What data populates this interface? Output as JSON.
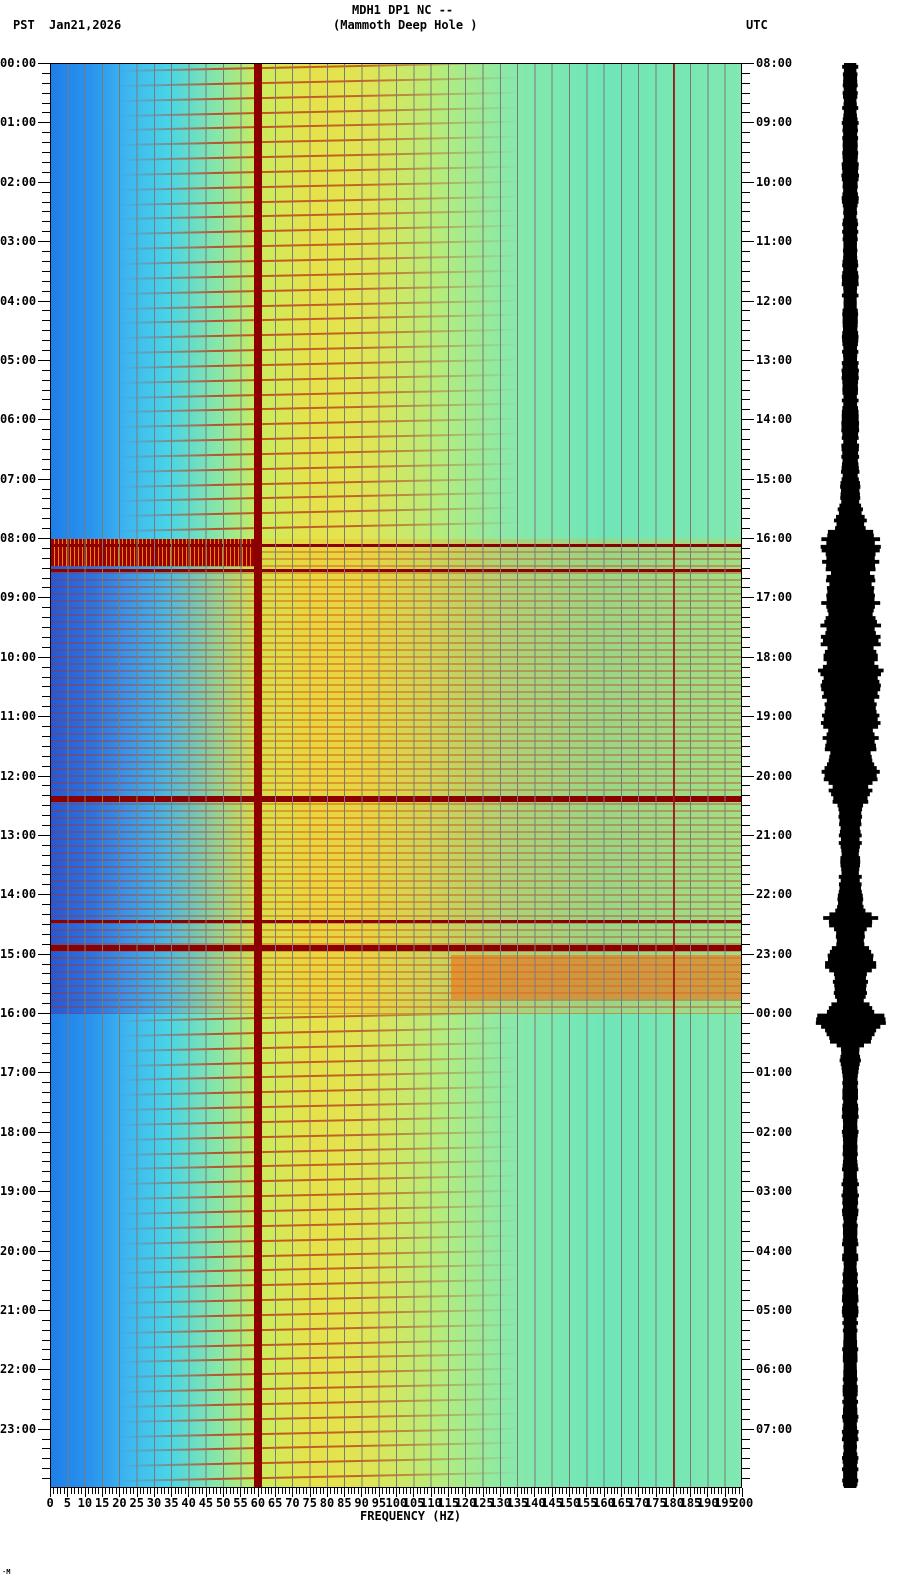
{
  "header": {
    "station": "MDH1 DP1 NC --",
    "site": "(Mammoth Deep Hole )",
    "left_tz": "PST",
    "date": "Jan21,2026",
    "right_tz": "UTC"
  },
  "footer": {
    "corner_mark": "⋅M"
  },
  "colors": {
    "low": "#1f7fe8",
    "mid": "#48d4e6",
    "high": "#e6e24a",
    "peak": "#8b0000",
    "grid": "#7a7a7a",
    "waveform": "#000000"
  },
  "chart_data": {
    "type": "heatmap",
    "title": "MDH1 DP1 NC -- (Mammoth Deep Hole )",
    "xlabel": "FREQUENCY (HZ)",
    "ylabel_left": "PST",
    "ylabel_right": "UTC",
    "date": "Jan21,2026",
    "xlim": [
      0,
      200
    ],
    "x_ticks": [
      0,
      5,
      10,
      15,
      20,
      25,
      30,
      35,
      40,
      45,
      50,
      55,
      60,
      65,
      70,
      75,
      80,
      85,
      90,
      95,
      100,
      105,
      110,
      115,
      120,
      125,
      130,
      135,
      140,
      145,
      150,
      155,
      160,
      165,
      170,
      175,
      180,
      185,
      190,
      195,
      200
    ],
    "y_ticks_left": [
      "00:00",
      "01:00",
      "02:00",
      "03:00",
      "04:00",
      "05:00",
      "06:00",
      "07:00",
      "08:00",
      "09:00",
      "10:00",
      "11:00",
      "12:00",
      "13:00",
      "14:00",
      "15:00",
      "16:00",
      "17:00",
      "18:00",
      "19:00",
      "20:00",
      "21:00",
      "22:00",
      "23:00"
    ],
    "y_ticks_right": [
      "08:00",
      "09:00",
      "10:00",
      "11:00",
      "12:00",
      "13:00",
      "14:00",
      "15:00",
      "16:00",
      "17:00",
      "18:00",
      "19:00",
      "20:00",
      "21:00",
      "22:00",
      "23:00",
      "00:00",
      "01:00",
      "02:00",
      "03:00",
      "04:00",
      "05:00",
      "06:00",
      "07:00"
    ],
    "minor_ticks_per_hour": 6,
    "grid": true,
    "persistent_lines_hz": [
      60,
      180
    ],
    "noisy_interval_pst": [
      "08:00",
      "16:00"
    ],
    "strong_horizontal_bands_pst": [
      "08:05",
      "08:30",
      "12:20",
      "14:25",
      "14:50"
    ],
    "waveform_envelope": {
      "description": "relative amplitude of seismic trace per ~10 min step (0-1)",
      "hours": [
        0,
        0.5,
        1,
        1.5,
        2,
        2.5,
        3,
        3.5,
        4,
        4.5,
        5,
        5.5,
        6,
        6.5,
        7,
        7.5,
        7.8,
        8.0,
        8.2,
        8.4,
        8.6,
        8.8,
        9,
        9.3,
        9.6,
        10,
        10.3,
        10.6,
        11,
        11.3,
        11.6,
        12,
        12.2,
        12.4,
        12.6,
        13,
        13.4,
        13.8,
        14.2,
        14.4,
        14.6,
        14.8,
        15,
        15.2,
        15.4,
        15.6,
        15.8,
        16,
        16.2,
        16.4,
        16.6,
        17,
        18,
        19,
        20,
        21,
        22,
        23,
        24
      ],
      "amplitude": [
        0.2,
        0.2,
        0.21,
        0.2,
        0.22,
        0.2,
        0.21,
        0.22,
        0.21,
        0.2,
        0.22,
        0.21,
        0.22,
        0.22,
        0.23,
        0.3,
        0.45,
        0.75,
        0.8,
        0.7,
        0.6,
        0.65,
        0.75,
        0.7,
        0.8,
        0.7,
        0.85,
        0.75,
        0.8,
        0.7,
        0.65,
        0.75,
        0.55,
        0.5,
        0.3,
        0.3,
        0.25,
        0.3,
        0.35,
        0.7,
        0.45,
        0.35,
        0.6,
        0.7,
        0.45,
        0.5,
        0.4,
        0.8,
        0.9,
        0.65,
        0.3,
        0.22,
        0.21,
        0.22,
        0.2,
        0.21,
        0.2,
        0.21,
        0.2
      ]
    }
  }
}
